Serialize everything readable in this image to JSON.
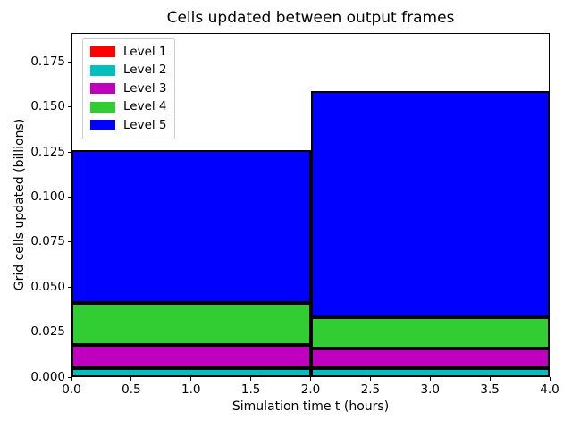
{
  "chart_data": {
    "type": "bar",
    "subtype": "stacked-vertical-edge-to-edge",
    "title": "Cells updated between output frames",
    "xlabel": "Simulation time t (hours)",
    "ylabel": "Grid cells updated (billions)",
    "xlim": [
      0,
      4
    ],
    "ylim": [
      0,
      0.191
    ],
    "grid": false,
    "background": "#ffffff",
    "bar_edge_color": "#000000",
    "legend_position": "upper-left",
    "xticks": {
      "values": [
        0.0,
        0.5,
        1.0,
        1.5,
        2.0,
        2.5,
        3.0,
        3.5,
        4.0
      ],
      "labels": [
        "0.0",
        "0.5",
        "1.0",
        "1.5",
        "2.0",
        "2.5",
        "3.0",
        "3.5",
        "4.0"
      ]
    },
    "yticks": {
      "values": [
        0.0,
        0.025,
        0.05,
        0.075,
        0.1,
        0.125,
        0.15,
        0.175
      ],
      "labels": [
        "0.000",
        "0.025",
        "0.050",
        "0.075",
        "0.100",
        "0.125",
        "0.150",
        "0.175"
      ]
    },
    "bars": [
      {
        "x_start": 0.0,
        "x_end": 2.0,
        "total": 0.126
      },
      {
        "x_start": 2.0,
        "x_end": 4.0,
        "total": 0.159
      }
    ],
    "series": [
      {
        "name": "Level 1",
        "color": "#ff0000",
        "values": [
          0.0,
          0.0
        ]
      },
      {
        "name": "Level 2",
        "color": "#00bfbf",
        "values": [
          0.005,
          0.005
        ]
      },
      {
        "name": "Level 3",
        "color": "#bf00bf",
        "values": [
          0.013,
          0.011
        ]
      },
      {
        "name": "Level 4",
        "color": "#32cd32",
        "values": [
          0.023,
          0.017
        ]
      },
      {
        "name": "Level 5",
        "color": "#0000ff",
        "values": [
          0.085,
          0.126
        ]
      }
    ]
  }
}
